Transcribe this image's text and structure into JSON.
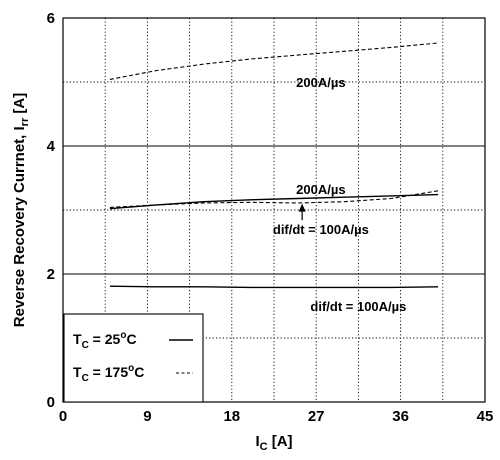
{
  "chart_data": {
    "type": "line",
    "xlabel": "I",
    "xlabel_sub": "C",
    "xlabel_unit": " [A]",
    "ylabel": "Reverse Recovery Currnet, I",
    "ylabel_sub": "rr",
    "ylabel_unit": " [A]",
    "xlim": [
      0,
      45
    ],
    "ylim": [
      0,
      6
    ],
    "x_ticks": [
      "0",
      "9",
      "18",
      "27",
      "36",
      "45"
    ],
    "y_ticks": [
      "0",
      "2",
      "4",
      "6"
    ],
    "grid": true,
    "series": [
      {
        "name": "T_C = 25°C, dif/dt = 100A/µs",
        "style": "solid",
        "x": [
          5,
          10,
          15,
          20,
          25,
          30,
          35,
          40
        ],
        "y": [
          1.81,
          1.8,
          1.8,
          1.79,
          1.79,
          1.79,
          1.79,
          1.8
        ]
      },
      {
        "name": "T_C = 25°C, 200A/µs",
        "style": "solid",
        "x": [
          5,
          10,
          15,
          20,
          25,
          30,
          35,
          40
        ],
        "y": [
          3.02,
          3.08,
          3.13,
          3.16,
          3.18,
          3.2,
          3.22,
          3.24
        ]
      },
      {
        "name": "T_C = 175°C, dif/dt = 100A/µs",
        "style": "dashed",
        "x": [
          5,
          10,
          15,
          20,
          25,
          30,
          35,
          40
        ],
        "y": [
          3.04,
          3.08,
          3.11,
          3.12,
          3.11,
          3.13,
          3.18,
          3.3
        ]
      },
      {
        "name": "T_C = 175°C, 200A/µs",
        "style": "dashed",
        "x": [
          5,
          10,
          15,
          20,
          25,
          30,
          35,
          40
        ],
        "y": [
          5.04,
          5.18,
          5.28,
          5.36,
          5.42,
          5.48,
          5.54,
          5.61
        ]
      }
    ],
    "annotations": [
      {
        "text": "200A/µs",
        "x": 27.5,
        "y": 5.0
      },
      {
        "text": "200A/µs",
        "x": 27.5,
        "y": 3.33
      },
      {
        "text": "dif/dt = 100A/µs",
        "x": 27.5,
        "y": 2.7,
        "arrow_to": [
          25.5,
          3.1
        ]
      },
      {
        "text": "dif/dt = 100A/µs",
        "x": 31.5,
        "y": 1.5
      }
    ],
    "legend": {
      "placement": "bottom-left",
      "entries": [
        {
          "label": "T",
          "sub": "C",
          "rest": " = 25",
          "sup": "o",
          "unit": "C",
          "style": "solid"
        },
        {
          "label": "T",
          "sub": "C",
          "rest": " = 175",
          "sup": "o",
          "unit": "C",
          "style": "dashed"
        }
      ]
    }
  }
}
